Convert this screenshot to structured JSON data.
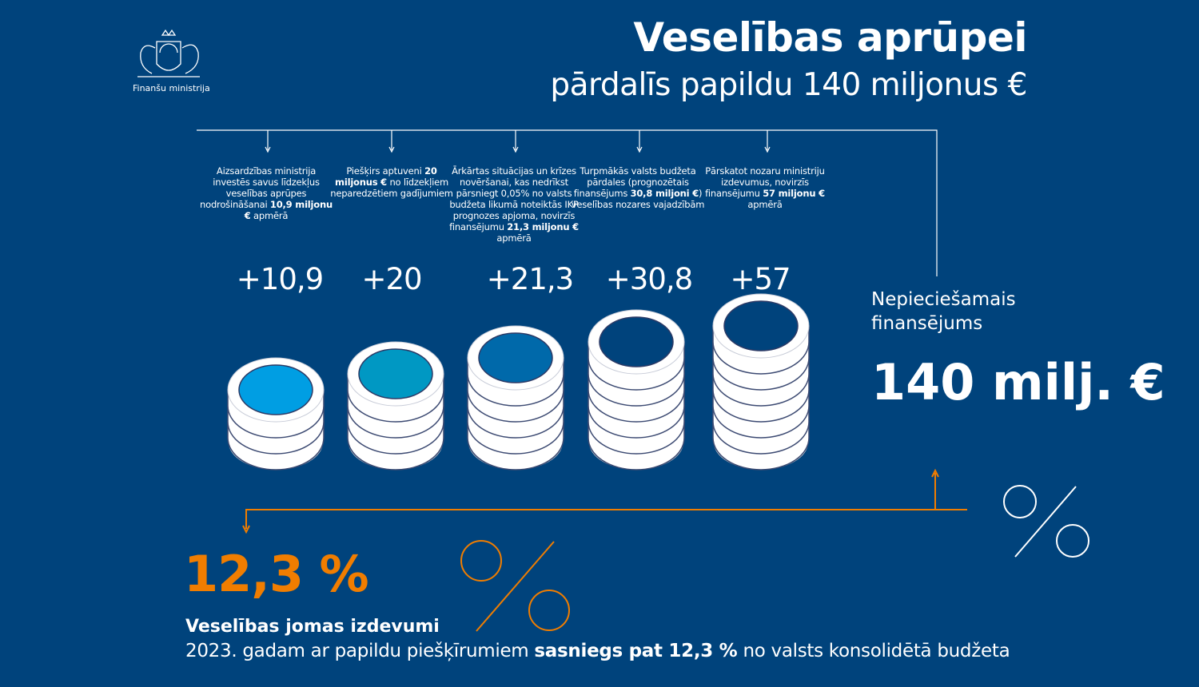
{
  "header": {
    "title": "Veselības aprūpei",
    "subtitle": "pārdalīs papildu 140 miljonus €",
    "logo_text": "Finanšu ministrija",
    "logo_icon": "coat-of-arms-icon"
  },
  "sources": [
    {
      "pre": "Aizsardzības ministrija investēs savus līdzekļus veselības aprūpes nodrošināšanai ",
      "bold": "10,9 miljonu €",
      "post": " apmērā",
      "value_label": "+10,9",
      "value": 10.9,
      "coin_color": "#009ee3"
    },
    {
      "pre": "Piešķirs aptuveni ",
      "bold": "20 miljonus €",
      "post": " no līdzekļiem neparedzētiem gadījumiem",
      "value_label": "+20",
      "value": 20,
      "coin_color": "#0098c3"
    },
    {
      "pre": "Ārkārtas situācijas un krīzes novēršanai, kas nedrīkst pārsniegt 0,05% no valsts budžeta likumā noteiktās IKP prognozes apjoma, novirzīs finansējumu ",
      "bold": "21,3 miljonu €",
      "post": " apmērā",
      "value_label": "+21,3",
      "value": 21.3,
      "coin_color": "#0069aa"
    },
    {
      "pre": "Turpmākās valsts budžeta pārdales (prognozētais finansējums ",
      "bold": "30,8 miljoni €",
      "post": ") veselības nozares vajadzībām",
      "value_label": "+30,8",
      "value": 30.8,
      "coin_color": "#00437c"
    },
    {
      "pre": "Pārskatot nozaru ministriju izdevumus, novirzīs finansējumu ",
      "bold": "57 miljonu €",
      "post": " apmērā",
      "value_label": "+57",
      "value": 57,
      "coin_color": "#00437c"
    }
  ],
  "total": {
    "label": "Nepieciešamais finansējums",
    "value": "140 milj. €"
  },
  "share": {
    "value": "12,3 %",
    "title": "Veselības jomas izdevumi",
    "text_pre": "2023. gadam ar papildu piešķīrumiem ",
    "text_bold": "sasniegs pat 12,3 %",
    "text_post": " no valsts konsolidētā budžeta"
  },
  "colors": {
    "background": "#00437c",
    "accent": "#f07d00",
    "text": "#ffffff"
  }
}
